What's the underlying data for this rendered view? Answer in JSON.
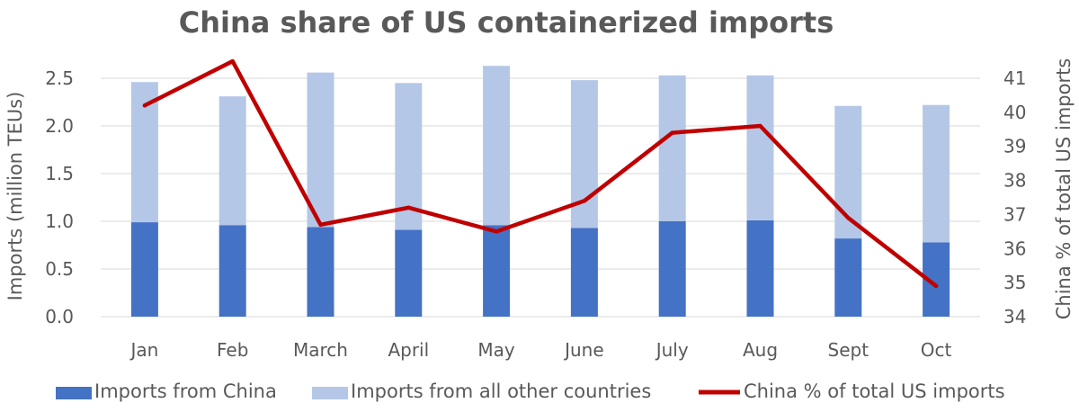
{
  "chart_data": {
    "type": "bar",
    "title": "China share of US containerized imports",
    "categories": [
      "Jan",
      "Feb",
      "March",
      "April",
      "May",
      "June",
      "July",
      "Aug",
      "Sept",
      "Oct"
    ],
    "stacked": true,
    "series": [
      {
        "name": "Imports from China",
        "type": "bar",
        "axis": "left",
        "color": "#4472c4",
        "values": [
          0.99,
          0.96,
          0.94,
          0.91,
          0.96,
          0.93,
          1.0,
          1.01,
          0.82,
          0.78
        ]
      },
      {
        "name": "Imports from all other countries",
        "type": "bar",
        "axis": "left",
        "color": "#b4c7e7",
        "values": [
          1.47,
          1.35,
          1.62,
          1.54,
          1.67,
          1.55,
          1.53,
          1.52,
          1.39,
          1.44
        ]
      },
      {
        "name": "China % of total US imports",
        "type": "line",
        "axis": "right",
        "color": "#c00000",
        "values": [
          40.2,
          41.5,
          36.7,
          37.2,
          36.5,
          37.4,
          39.4,
          39.6,
          36.9,
          34.9
        ]
      }
    ],
    "ylabel": "Imports (million TEUs)",
    "ylim": [
      0,
      2.5
    ],
    "yticks": [
      "0.0",
      "0.5",
      "1.0",
      "1.5",
      "2.0",
      "2.5"
    ],
    "y2label": "China % of total US imports",
    "y2lim": [
      34,
      41
    ],
    "y2ticks": [
      "34",
      "35",
      "36",
      "37",
      "38",
      "39",
      "40",
      "41"
    ],
    "grid": true,
    "legend": "bottom"
  }
}
